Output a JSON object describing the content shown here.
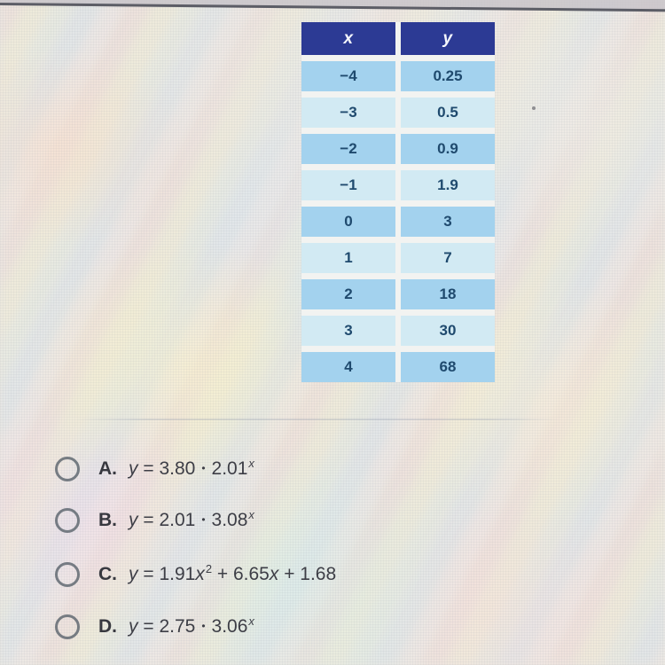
{
  "page": {
    "bg_base": "#eae7e1",
    "top_edge_line_color": "#5c5d66"
  },
  "table": {
    "headers": [
      "x",
      "y"
    ],
    "rows": [
      [
        "−4",
        "0.25"
      ],
      [
        "−3",
        "0.5"
      ],
      [
        "−2",
        "0.9"
      ],
      [
        "−1",
        "1.9"
      ],
      [
        "0",
        "3"
      ],
      [
        "1",
        "7"
      ],
      [
        "2",
        "18"
      ],
      [
        "3",
        "30"
      ],
      [
        "4",
        "68"
      ]
    ],
    "header_bg": "#2c3a94",
    "header_text": "#f4f6fc",
    "row_bg_dark": "#a3d2ee",
    "row_bg_light": "#d2eaf3",
    "cell_text": "#1f4a6e"
  },
  "options": [
    {
      "letter": "A.",
      "equation_text": "y = 3.80 • 2.01^x",
      "segments": [
        {
          "t": "it",
          "v": "y"
        },
        {
          "t": "n",
          "v": " = "
        },
        {
          "t": "n",
          "v": "3.80"
        },
        {
          "t": "dot",
          "v": "•"
        },
        {
          "t": "n",
          "v": "2.01"
        },
        {
          "t": "supi",
          "v": "x"
        }
      ]
    },
    {
      "letter": "B.",
      "equation_text": "y = 2.01 • 3.08^x",
      "segments": [
        {
          "t": "it",
          "v": "y"
        },
        {
          "t": "n",
          "v": " = "
        },
        {
          "t": "n",
          "v": "2.01"
        },
        {
          "t": "dot",
          "v": "•"
        },
        {
          "t": "n",
          "v": "3.08"
        },
        {
          "t": "supi",
          "v": "x"
        }
      ]
    },
    {
      "letter": "C.",
      "equation_text": "y = 1.91x^2 + 6.65x + 1.68",
      "segments": [
        {
          "t": "it",
          "v": "y"
        },
        {
          "t": "n",
          "v": " = "
        },
        {
          "t": "n",
          "v": "1.91"
        },
        {
          "t": "it",
          "v": "x"
        },
        {
          "t": "sup",
          "v": "2"
        },
        {
          "t": "n",
          "v": " + 6.65"
        },
        {
          "t": "it",
          "v": "x"
        },
        {
          "t": "n",
          "v": " + 1.68"
        }
      ]
    },
    {
      "letter": "D.",
      "equation_text": "y = 2.75 • 3.06^x",
      "segments": [
        {
          "t": "it",
          "v": "y"
        },
        {
          "t": "n",
          "v": " = "
        },
        {
          "t": "n",
          "v": "2.75"
        },
        {
          "t": "dot",
          "v": "•"
        },
        {
          "t": "n",
          "v": "3.06"
        },
        {
          "t": "supi",
          "v": "x"
        }
      ]
    }
  ],
  "radio": {
    "border_color": "#626a72",
    "state": "unselected"
  }
}
